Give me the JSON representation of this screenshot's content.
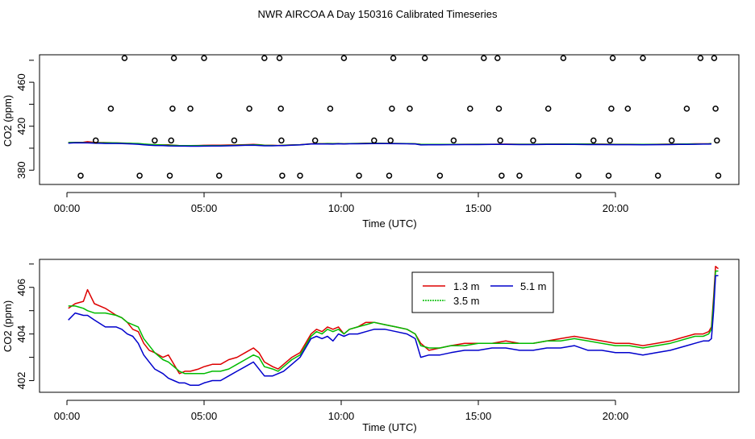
{
  "title": "NWR AIRCOA A  Day 150316  Calibrated Timeseries",
  "chart_data": [
    {
      "type": "scatter",
      "name": "top-panel",
      "xlabel": "Time (UTC)",
      "ylabel": "CO2 (ppm)",
      "xlim": [
        -1.0,
        24.5
      ],
      "ylim": [
        367.0,
        485.0
      ],
      "x_ticks": [
        0,
        5,
        10,
        15,
        20
      ],
      "x_tick_labels": [
        "00:00",
        "05:00",
        "10:00",
        "15:00",
        "20:00"
      ],
      "y_ticks": [
        380,
        420,
        460
      ],
      "y_tick_labels": [
        "380",
        "420",
        "460"
      ],
      "calibration_points": [
        [
          0.5,
          375
        ],
        [
          1.05,
          407
        ],
        [
          1.6,
          436
        ],
        [
          2.1,
          482
        ],
        [
          2.65,
          375
        ],
        [
          3.2,
          407
        ],
        [
          3.75,
          375
        ],
        [
          3.8,
          407
        ],
        [
          3.85,
          436
        ],
        [
          3.9,
          482
        ],
        [
          4.5,
          436
        ],
        [
          5.0,
          482
        ],
        [
          5.55,
          375
        ],
        [
          6.1,
          407
        ],
        [
          6.65,
          436
        ],
        [
          7.2,
          482
        ],
        [
          7.75,
          482
        ],
        [
          7.8,
          436
        ],
        [
          7.82,
          407
        ],
        [
          7.85,
          375
        ],
        [
          8.5,
          375
        ],
        [
          9.05,
          407
        ],
        [
          9.6,
          436
        ],
        [
          10.1,
          482
        ],
        [
          10.65,
          375
        ],
        [
          11.2,
          407
        ],
        [
          11.75,
          375
        ],
        [
          11.8,
          407
        ],
        [
          11.85,
          436
        ],
        [
          11.9,
          482
        ],
        [
          12.5,
          436
        ],
        [
          13.05,
          482
        ],
        [
          13.6,
          375
        ],
        [
          14.1,
          407
        ],
        [
          14.7,
          436
        ],
        [
          15.2,
          482
        ],
        [
          15.7,
          482
        ],
        [
          15.75,
          436
        ],
        [
          15.8,
          407
        ],
        [
          15.85,
          375
        ],
        [
          16.5,
          375
        ],
        [
          17.0,
          407
        ],
        [
          17.55,
          436
        ],
        [
          18.1,
          482
        ],
        [
          18.65,
          375
        ],
        [
          19.2,
          407
        ],
        [
          19.75,
          375
        ],
        [
          19.8,
          407
        ],
        [
          19.85,
          436
        ],
        [
          19.9,
          482
        ],
        [
          20.45,
          436
        ],
        [
          21.0,
          482
        ],
        [
          21.55,
          375
        ],
        [
          22.05,
          407
        ],
        [
          22.6,
          436
        ],
        [
          23.1,
          482
        ],
        [
          23.6,
          482
        ],
        [
          23.65,
          436
        ],
        [
          23.7,
          407
        ],
        [
          23.75,
          375
        ]
      ],
      "series_colors": [
        "#dd0000",
        "#00bb00",
        "#0000cc"
      ]
    },
    {
      "type": "line",
      "name": "bottom-panel",
      "xlabel": "Time (UTC)",
      "ylabel": "CO2 (ppm)",
      "xlim": [
        -1.0,
        24.5
      ],
      "ylim": [
        401.5,
        407.2
      ],
      "x_ticks": [
        0,
        5,
        10,
        15,
        20
      ],
      "x_tick_labels": [
        "00:00",
        "05:00",
        "10:00",
        "15:00",
        "20:00"
      ],
      "y_ticks": [
        402,
        404,
        406
      ],
      "y_tick_labels": [
        "402",
        "404",
        "406"
      ],
      "legend": {
        "position": "top-center"
      },
      "x": [
        0.05,
        0.3,
        0.6,
        0.75,
        1.0,
        1.4,
        1.8,
        2.0,
        2.2,
        2.4,
        2.6,
        2.8,
        3.0,
        3.2,
        3.5,
        3.7,
        3.9,
        4.1,
        4.3,
        4.5,
        4.8,
        5.0,
        5.3,
        5.6,
        5.9,
        6.2,
        6.5,
        6.8,
        7.0,
        7.2,
        7.5,
        7.7,
        7.9,
        8.2,
        8.5,
        8.7,
        8.9,
        9.1,
        9.3,
        9.5,
        9.7,
        9.9,
        10.1,
        10.3,
        10.6,
        10.9,
        11.2,
        11.6,
        12.0,
        12.4,
        12.7,
        12.9,
        13.2,
        13.6,
        14.0,
        14.5,
        15.0,
        15.5,
        16.0,
        16.5,
        17.0,
        17.5,
        18.0,
        18.5,
        19.0,
        19.5,
        20.0,
        20.5,
        21.0,
        21.5,
        22.0,
        22.3,
        22.6,
        22.9,
        23.2,
        23.4,
        23.5,
        23.58,
        23.65,
        23.75
      ],
      "series": [
        {
          "name": "1.3 m",
          "color": "#dd0000",
          "values": [
            405.1,
            405.3,
            405.4,
            405.9,
            405.3,
            405.1,
            404.8,
            404.7,
            404.5,
            404.2,
            404.1,
            403.6,
            403.3,
            403.2,
            403.0,
            403.1,
            402.7,
            402.3,
            402.4,
            402.4,
            402.5,
            402.6,
            402.7,
            402.7,
            402.9,
            403.0,
            403.2,
            403.4,
            403.2,
            402.8,
            402.6,
            402.5,
            402.7,
            403.0,
            403.2,
            403.6,
            404.0,
            404.2,
            404.1,
            404.3,
            404.2,
            404.3,
            404.0,
            404.2,
            404.3,
            404.5,
            404.5,
            404.4,
            404.3,
            404.2,
            404.0,
            403.6,
            403.3,
            403.4,
            403.5,
            403.6,
            403.6,
            403.6,
            403.7,
            403.6,
            403.6,
            403.7,
            403.8,
            403.9,
            403.8,
            403.7,
            403.6,
            403.6,
            403.5,
            403.6,
            403.7,
            403.8,
            403.9,
            404.0,
            404.0,
            404.1,
            404.3,
            405.6,
            406.9,
            406.8
          ]
        },
        {
          "name": "3.5 m",
          "color": "#00bb00",
          "values": [
            405.2,
            405.2,
            405.1,
            405.0,
            404.9,
            404.9,
            404.8,
            404.7,
            404.5,
            404.4,
            404.3,
            403.8,
            403.5,
            403.2,
            402.9,
            402.8,
            402.6,
            402.4,
            402.3,
            402.3,
            402.3,
            402.3,
            402.4,
            402.4,
            402.5,
            402.7,
            402.9,
            403.1,
            403.0,
            402.6,
            402.5,
            402.4,
            402.6,
            402.9,
            403.1,
            403.5,
            403.9,
            404.1,
            404.0,
            404.2,
            404.1,
            404.2,
            404.0,
            404.2,
            404.3,
            404.4,
            404.5,
            404.4,
            404.3,
            404.2,
            404.0,
            403.5,
            403.4,
            403.4,
            403.5,
            403.5,
            403.6,
            403.6,
            403.6,
            403.6,
            403.6,
            403.7,
            403.7,
            403.8,
            403.7,
            403.6,
            403.5,
            403.5,
            403.4,
            403.5,
            403.6,
            403.7,
            403.8,
            403.9,
            403.9,
            404.0,
            404.2,
            405.4,
            406.7,
            406.7
          ]
        },
        {
          "name": "5.1 m",
          "color": "#0000cc",
          "values": [
            404.6,
            404.9,
            404.8,
            404.8,
            404.6,
            404.3,
            404.3,
            404.2,
            404.0,
            403.9,
            403.6,
            403.1,
            402.8,
            402.5,
            402.3,
            402.1,
            402.0,
            401.9,
            401.9,
            401.8,
            401.8,
            401.9,
            402.0,
            402.0,
            402.2,
            402.4,
            402.6,
            402.8,
            402.5,
            402.2,
            402.2,
            402.3,
            402.4,
            402.7,
            403.0,
            403.4,
            403.8,
            403.9,
            403.8,
            403.9,
            403.7,
            404.0,
            403.9,
            404.0,
            404.0,
            404.1,
            404.2,
            404.2,
            404.1,
            404.0,
            403.8,
            403.0,
            403.1,
            403.1,
            403.2,
            403.3,
            403.3,
            403.4,
            403.4,
            403.3,
            403.3,
            403.4,
            403.4,
            403.5,
            403.3,
            403.3,
            403.2,
            403.2,
            403.1,
            403.2,
            403.3,
            403.4,
            403.5,
            403.6,
            403.7,
            403.7,
            403.8,
            405.0,
            406.5,
            406.5
          ]
        }
      ]
    }
  ]
}
